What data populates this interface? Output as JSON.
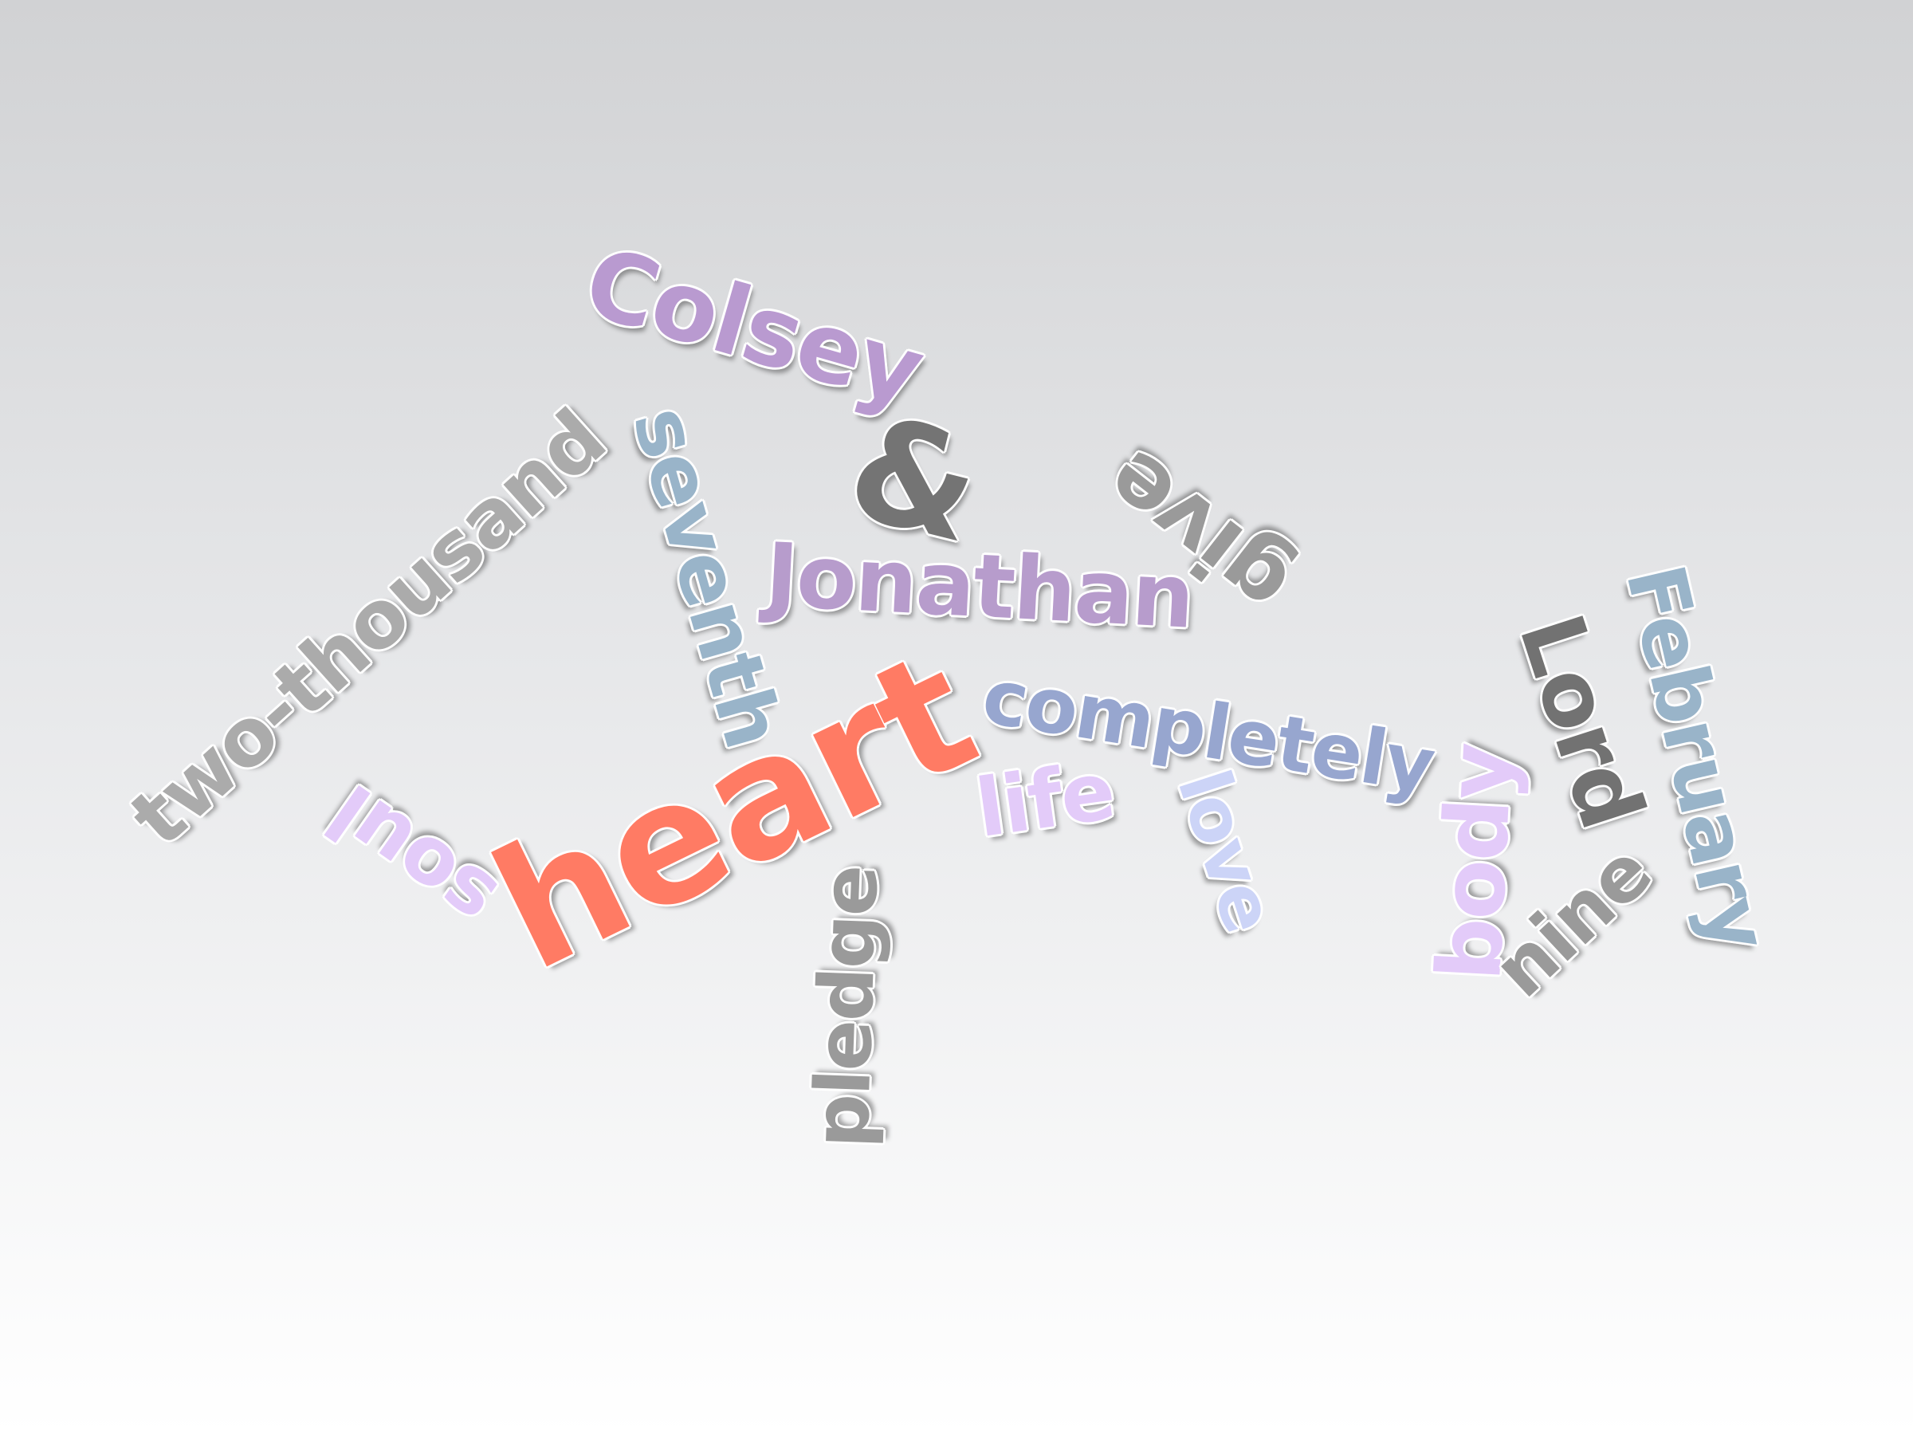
{
  "words": {
    "colsey": {
      "text": "Colsey",
      "color": "#b99ad0"
    },
    "ampersand": {
      "text": "&",
      "color": "#747474"
    },
    "jonathan": {
      "text": "Jonathan",
      "color": "#b79ccc"
    },
    "give": {
      "text": "give",
      "color": "#9a9a9a"
    },
    "seventh": {
      "text": "seventh",
      "color": "#99b4c9"
    },
    "two_thousand": {
      "text": "two-thousand",
      "color": "#ababab"
    },
    "heart": {
      "text": "heart",
      "color": "#ff7b64"
    },
    "completely": {
      "text": "completely",
      "color": "#97a6cf"
    },
    "life": {
      "text": "life",
      "color": "#e3cbf9"
    },
    "love": {
      "text": "love",
      "color": "#ccd4f7"
    },
    "soul": {
      "text": "soul",
      "color": "#e3cbf9"
    },
    "pledge": {
      "text": "pledge",
      "color": "#9a9a9a"
    },
    "body": {
      "text": "body",
      "color": "#e3cbf9"
    },
    "lord": {
      "text": "Lord",
      "color": "#727272"
    },
    "nine": {
      "text": "nine",
      "color": "#9a9a9a"
    },
    "february": {
      "text": "February",
      "color": "#99b4c9"
    }
  }
}
